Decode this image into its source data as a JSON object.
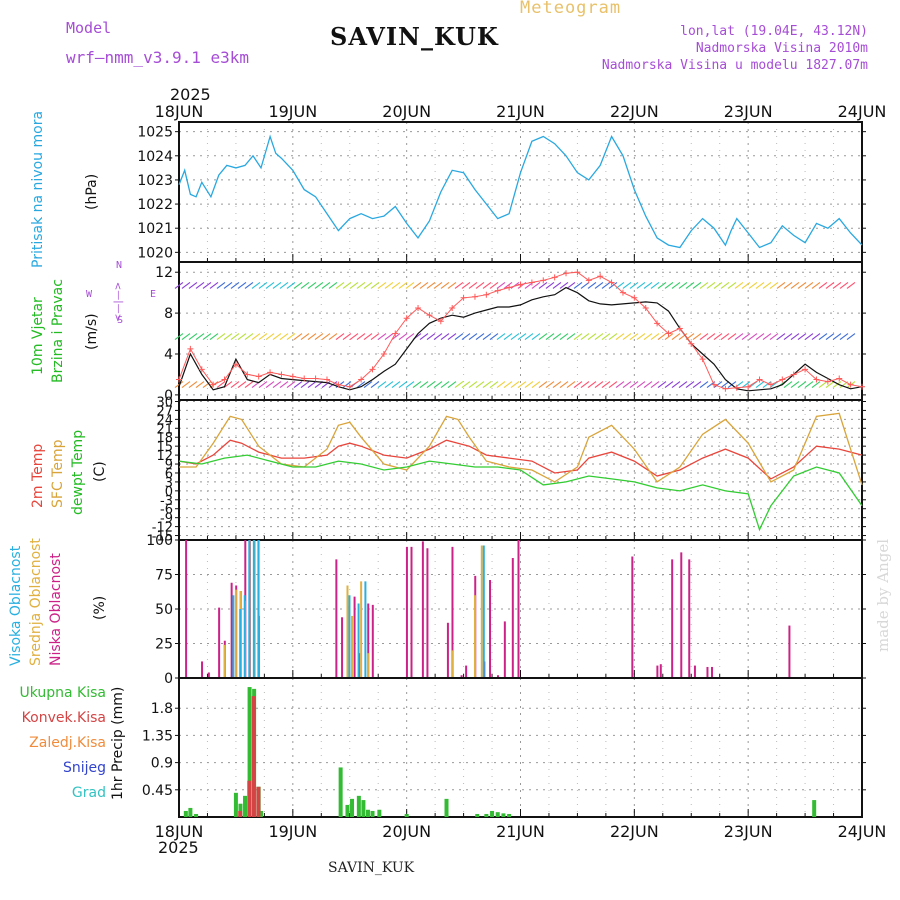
{
  "header": {
    "model_label": "Model",
    "model_name": "wrf—nmm_v3.9.1  e3km",
    "station": "SAVIN_KUK",
    "meteogram_label": "Meteogram",
    "lonlat": "lon,lat (19.04E, 43.12N)",
    "altitude": "Nadmorska Visina 2010m",
    "model_altitude": "Nadmorska Visina u modelu 1827.07m",
    "year_top": "2025",
    "year_bottom": "2025",
    "footer_station": "SAVIN_KUK",
    "credit": "made by Angel"
  },
  "x_axis": {
    "days": [
      "18JUN",
      "19JUN",
      "20JUN",
      "21JUN",
      "22JUN",
      "23JUN",
      "24JUN"
    ]
  },
  "panel_labels": {
    "pressure": [
      "Pritisak na nivou mora"
    ],
    "pressure_unit": "(hPa)",
    "wind": [
      "10m Vjetar",
      "Brzina i Pravac"
    ],
    "wind_unit": "(m/s)",
    "wind_compass": [
      "N",
      "<—|—>",
      "S",
      "W",
      "E"
    ],
    "temp": [
      "2m Temp",
      "SFC Temp",
      "dewpt Temp"
    ],
    "temp_unit": "(C)",
    "cloud": [
      "Visoka Oblacnost",
      "Srednja Oblacnost",
      "Niska Oblacnost"
    ],
    "cloud_unit": "(%)",
    "precip_unit": "1hr Precip (mm)",
    "precip_legend": [
      "Ukupna Kisa",
      "Konvek.Kisa",
      "Zaledj.Kisa",
      "Snijeg",
      "Grad"
    ]
  },
  "colors": {
    "pressure": "#29a8e0",
    "temp2m": "#e8463c",
    "sfc": "#d9a43a",
    "dew": "#33cc33",
    "wind_obs": "#111111",
    "wind_marker": "#ff5a5a",
    "cloud_high": "#29b0e0",
    "cloud_mid": "#e0b040",
    "cloud_low": "#cc2288",
    "precip_total": "#33bb33",
    "precip_conv": "#d44444",
    "precip_frz": "#f08c3c",
    "precip_snow": "#3344cc",
    "precip_grad": "#33c2c2",
    "label_pressure": "#29a8e0",
    "label_wind": "#22bb22",
    "label_purple": "#a64dd6"
  },
  "chart_data": [
    {
      "type": "line",
      "name": "pressure",
      "title": "Pritisak na nivou mora",
      "ylabel": "(hPa)",
      "ylim": [
        1019.6,
        1025.4
      ],
      "yticks": [
        1020,
        1021,
        1022,
        1023,
        1024,
        1025
      ],
      "x_days": [
        0,
        6
      ],
      "series": [
        {
          "name": "MSLP",
          "x": [
            0,
            0.05,
            0.1,
            0.15,
            0.2,
            0.28,
            0.35,
            0.42,
            0.5,
            0.58,
            0.65,
            0.72,
            0.8,
            0.85,
            0.9,
            1.0,
            1.1,
            1.2,
            1.3,
            1.4,
            1.5,
            1.6,
            1.7,
            1.8,
            1.9,
            2.0,
            2.1,
            2.2,
            2.3,
            2.4,
            2.5,
            2.6,
            2.7,
            2.8,
            2.9,
            3.0,
            3.1,
            3.2,
            3.3,
            3.4,
            3.5,
            3.6,
            3.7,
            3.8,
            3.9,
            4.0,
            4.1,
            4.2,
            4.3,
            4.4,
            4.5,
            4.6,
            4.7,
            4.8,
            4.85,
            4.9,
            5.0,
            5.1,
            5.2,
            5.3,
            5.4,
            5.5,
            5.6,
            5.7,
            5.8,
            5.9,
            6.0
          ],
          "values": [
            1022.8,
            1023.4,
            1022.4,
            1022.3,
            1022.9,
            1022.3,
            1023.2,
            1023.6,
            1023.5,
            1023.6,
            1024.0,
            1023.5,
            1024.8,
            1024.1,
            1023.9,
            1023.4,
            1022.6,
            1022.3,
            1021.6,
            1020.9,
            1021.4,
            1021.6,
            1021.4,
            1021.5,
            1021.9,
            1021.2,
            1020.6,
            1021.3,
            1022.5,
            1023.4,
            1023.3,
            1022.6,
            1022.0,
            1021.4,
            1021.6,
            1023.3,
            1024.6,
            1024.8,
            1024.5,
            1024.0,
            1023.3,
            1023.0,
            1023.6,
            1024.8,
            1024.0,
            1022.6,
            1021.5,
            1020.6,
            1020.3,
            1020.2,
            1020.9,
            1021.4,
            1021.0,
            1020.3,
            1020.9,
            1021.4,
            1020.8,
            1020.2,
            1020.4,
            1021.1,
            1020.7,
            1020.4,
            1021.2,
            1021.0,
            1021.4,
            1020.8,
            1020.3
          ]
        }
      ]
    },
    {
      "type": "line",
      "name": "wind",
      "title": "10m Vjetar Brzina i Pravac",
      "ylabel": "(m/s)",
      "ylim": [
        -0.5,
        13
      ],
      "yticks": [
        0,
        4,
        8,
        12
      ],
      "series": [
        {
          "name": "speed",
          "x": [
            0,
            0.1,
            0.2,
            0.3,
            0.4,
            0.5,
            0.6,
            0.7,
            0.8,
            0.9,
            1.0,
            1.1,
            1.2,
            1.3,
            1.4,
            1.5,
            1.6,
            1.7,
            1.8,
            1.9,
            2.0,
            2.1,
            2.2,
            2.3,
            2.4,
            2.5,
            2.6,
            2.7,
            2.8,
            2.9,
            3.0,
            3.1,
            3.2,
            3.3,
            3.4,
            3.5,
            3.6,
            3.7,
            3.8,
            3.9,
            4.0,
            4.1,
            4.2,
            4.3,
            4.4,
            4.5,
            4.6,
            4.7,
            4.8,
            4.9,
            5.0,
            5.1,
            5.2,
            5.3,
            5.4,
            5.5,
            5.6,
            5.7,
            5.8,
            5.9,
            6.0
          ],
          "values": [
            0.8,
            4.0,
            2.0,
            0.5,
            0.8,
            3.5,
            1.5,
            1.2,
            2.0,
            1.6,
            1.5,
            1.4,
            1.3,
            1.2,
            0.8,
            0.5,
            0.8,
            1.5,
            2.3,
            3.0,
            4.5,
            6.0,
            7.0,
            7.5,
            7.8,
            7.6,
            8.0,
            8.3,
            8.6,
            8.6,
            8.8,
            9.3,
            9.6,
            9.8,
            10.5,
            10.0,
            9.2,
            8.9,
            8.8,
            8.9,
            9.0,
            9.1,
            9.0,
            8.2,
            6.5,
            5.0,
            4.0,
            3.0,
            1.5,
            0.6,
            0.4,
            0.5,
            0.6,
            1.0,
            2.0,
            3.0,
            2.2,
            1.6,
            1.0,
            0.6,
            0.8
          ]
        },
        {
          "name": "gust",
          "x": [
            0,
            0.1,
            0.2,
            0.3,
            0.4,
            0.5,
            0.6,
            0.7,
            0.8,
            0.9,
            1.0,
            1.1,
            1.2,
            1.3,
            1.4,
            1.5,
            1.6,
            1.7,
            1.8,
            1.9,
            2.0,
            2.1,
            2.2,
            2.3,
            2.4,
            2.5,
            2.6,
            2.7,
            2.8,
            2.9,
            3.0,
            3.1,
            3.2,
            3.3,
            3.4,
            3.5,
            3.6,
            3.7,
            3.8,
            3.9,
            4.0,
            4.1,
            4.2,
            4.3,
            4.4,
            4.5,
            4.6,
            4.7,
            4.8,
            4.9,
            5.0,
            5.1,
            5.2,
            5.3,
            5.4,
            5.5,
            5.6,
            5.7,
            5.8,
            5.9,
            6.0
          ],
          "values": [
            1.5,
            4.5,
            2.5,
            1.0,
            1.5,
            3.0,
            2.0,
            1.8,
            2.2,
            2.0,
            1.8,
            1.6,
            1.6,
            1.5,
            1.0,
            0.8,
            1.5,
            2.5,
            4.0,
            6.0,
            7.5,
            8.5,
            7.8,
            7.2,
            8.5,
            9.5,
            9.6,
            9.8,
            10.2,
            10.5,
            10.8,
            11.0,
            11.2,
            11.5,
            11.9,
            12.0,
            11.2,
            11.6,
            11.0,
            10.0,
            9.5,
            8.5,
            7.0,
            6.0,
            6.5,
            5.0,
            3.5,
            1.0,
            0.6,
            0.7,
            0.8,
            1.5,
            1.0,
            1.5,
            2.0,
            2.5,
            1.5,
            1.3,
            1.6,
            1.0,
            0.8
          ]
        }
      ]
    },
    {
      "type": "line",
      "name": "temperature",
      "title": "2m Temp / SFC Temp / dewpt Temp",
      "ylabel": "(C)",
      "ylim": [
        -16.5,
        30.5
      ],
      "yticks": [
        -15,
        -12,
        -9,
        -6,
        -3,
        0,
        3,
        6,
        9,
        12,
        15,
        18,
        21,
        24,
        27,
        30
      ],
      "series": [
        {
          "name": "2m Temp",
          "x": [
            0,
            0.15,
            0.3,
            0.45,
            0.55,
            0.7,
            0.9,
            1.1,
            1.3,
            1.4,
            1.5,
            1.6,
            1.8,
            2.0,
            2.2,
            2.35,
            2.45,
            2.55,
            2.7,
            2.9,
            3.1,
            3.3,
            3.5,
            3.6,
            3.8,
            4.0,
            4.2,
            4.4,
            4.6,
            4.8,
            5.0,
            5.2,
            5.4,
            5.6,
            5.8,
            6.0
          ],
          "values": [
            10,
            9,
            12,
            17,
            16,
            13,
            11,
            11,
            12,
            15,
            16,
            15,
            12,
            11,
            14,
            17,
            16,
            15,
            12,
            11,
            10,
            6,
            7,
            11,
            13,
            10,
            5,
            7,
            11,
            14,
            11,
            4,
            8,
            15,
            14,
            12
          ]
        },
        {
          "name": "SFC Temp",
          "x": [
            0,
            0.15,
            0.3,
            0.45,
            0.55,
            0.7,
            0.9,
            1.1,
            1.3,
            1.4,
            1.5,
            1.6,
            1.8,
            2.0,
            2.2,
            2.35,
            2.45,
            2.55,
            2.7,
            2.9,
            3.1,
            3.3,
            3.5,
            3.6,
            3.8,
            4.0,
            4.2,
            4.4,
            4.6,
            4.8,
            5.0,
            5.2,
            5.4,
            5.6,
            5.8,
            6.0
          ],
          "values": [
            8,
            8,
            16,
            25,
            24,
            15,
            9,
            8,
            14,
            22,
            23,
            18,
            9,
            7,
            15,
            25,
            24,
            18,
            10,
            8,
            7,
            3,
            8,
            18,
            22,
            14,
            3,
            8,
            19,
            24,
            16,
            3,
            7,
            25,
            26,
            2
          ]
        },
        {
          "name": "dewpt Temp",
          "x": [
            0,
            0.2,
            0.4,
            0.6,
            0.8,
            1.0,
            1.2,
            1.4,
            1.6,
            1.8,
            2.0,
            2.2,
            2.4,
            2.6,
            2.8,
            3.0,
            3.2,
            3.4,
            3.6,
            3.8,
            4.0,
            4.2,
            4.4,
            4.6,
            4.8,
            5.0,
            5.1,
            5.2,
            5.4,
            5.6,
            5.8,
            6.0
          ],
          "values": [
            10,
            9,
            11,
            12,
            10,
            8,
            8,
            10,
            9,
            7,
            8,
            10,
            9,
            8,
            8,
            7,
            2,
            3,
            5,
            4,
            3,
            1,
            0,
            2,
            0,
            -1,
            -13,
            -5,
            5,
            8,
            6,
            -5
          ]
        }
      ]
    },
    {
      "type": "bar",
      "name": "cloud",
      "title": "Visoka / Srednja / Niska Oblacnost",
      "ylabel": "(%)",
      "ylim": [
        0,
        100
      ],
      "yticks": [
        0,
        25,
        50,
        75,
        100
      ],
      "series": [
        {
          "name": "Niska",
          "x": [
            0.08,
            0.22,
            0.28,
            0.37,
            0.42,
            0.48,
            0.52,
            0.56,
            0.6,
            0.64,
            0.68,
            0.72,
            1.4,
            1.45,
            1.5,
            1.56,
            1.6,
            1.68,
            1.72,
            2.02,
            2.06,
            2.16,
            2.2,
            2.38,
            2.42,
            2.5,
            2.54,
            2.62,
            2.7,
            2.75,
            2.82,
            2.88,
            2.95,
            3.0,
            4.0,
            4.22,
            4.25,
            4.35,
            4.43,
            4.5,
            4.55,
            4.66,
            4.7,
            5.38
          ],
          "values": [
            100,
            12,
            4,
            51,
            27,
            69,
            67,
            63,
            100,
            100,
            100,
            45,
            86,
            44,
            52,
            59,
            18,
            54,
            53,
            95,
            95,
            99,
            94,
            40,
            95,
            2,
            9,
            74,
            12,
            71,
            2,
            41,
            87,
            100,
            88,
            9,
            10,
            86,
            91,
            86,
            9,
            8,
            8,
            38
          ]
        },
        {
          "name": "Srednja",
          "x": [
            0.4,
            0.5,
            0.54,
            0.58,
            0.62,
            0.66,
            0.7,
            1.48,
            1.52,
            1.6,
            1.66,
            2.4,
            2.6,
            2.66
          ],
          "values": [
            24,
            64,
            63,
            56,
            100,
            100,
            100,
            67,
            45,
            70,
            18,
            20,
            60,
            96
          ]
        },
        {
          "name": "Visoka",
          "x": [
            0.46,
            0.52,
            0.56,
            0.6,
            0.64,
            0.68,
            1.48,
            1.56,
            1.62,
            2.66
          ],
          "values": [
            60,
            50,
            60,
            100,
            100,
            100,
            60,
            54,
            70,
            96
          ]
        }
      ]
    },
    {
      "type": "bar",
      "name": "precip",
      "title": "1hr Precip (mm)",
      "ylabel": "1hr Precip (mm)",
      "ylim": [
        0,
        2.3
      ],
      "yticks": [
        0.45,
        0.9,
        1.35,
        1.8
      ],
      "series": [
        {
          "name": "Ukupna Kisa",
          "x": [
            0.06,
            0.1,
            0.15,
            0.5,
            0.54,
            0.58,
            0.62,
            0.66,
            0.7,
            0.72,
            1.42,
            1.48,
            1.52,
            1.58,
            1.62,
            1.66,
            1.7,
            1.76,
            2.0,
            2.35,
            2.62,
            2.7,
            2.75,
            2.8,
            2.85,
            2.9,
            5.58
          ],
          "values": [
            0.1,
            0.15,
            0.05,
            0.4,
            0.22,
            0.35,
            2.15,
            2.12,
            0.5,
            0.1,
            0.82,
            0.2,
            0.3,
            0.35,
            0.28,
            0.12,
            0.1,
            0.12,
            0.05,
            0.3,
            0.05,
            0.05,
            0.1,
            0.08,
            0.06,
            0.05,
            0.28
          ]
        },
        {
          "name": "Konvek.Kisa",
          "x": [
            0.52,
            0.6,
            0.64,
            0.68
          ],
          "values": [
            0.1,
            0.6,
            2.0,
            0.5
          ]
        }
      ]
    }
  ]
}
